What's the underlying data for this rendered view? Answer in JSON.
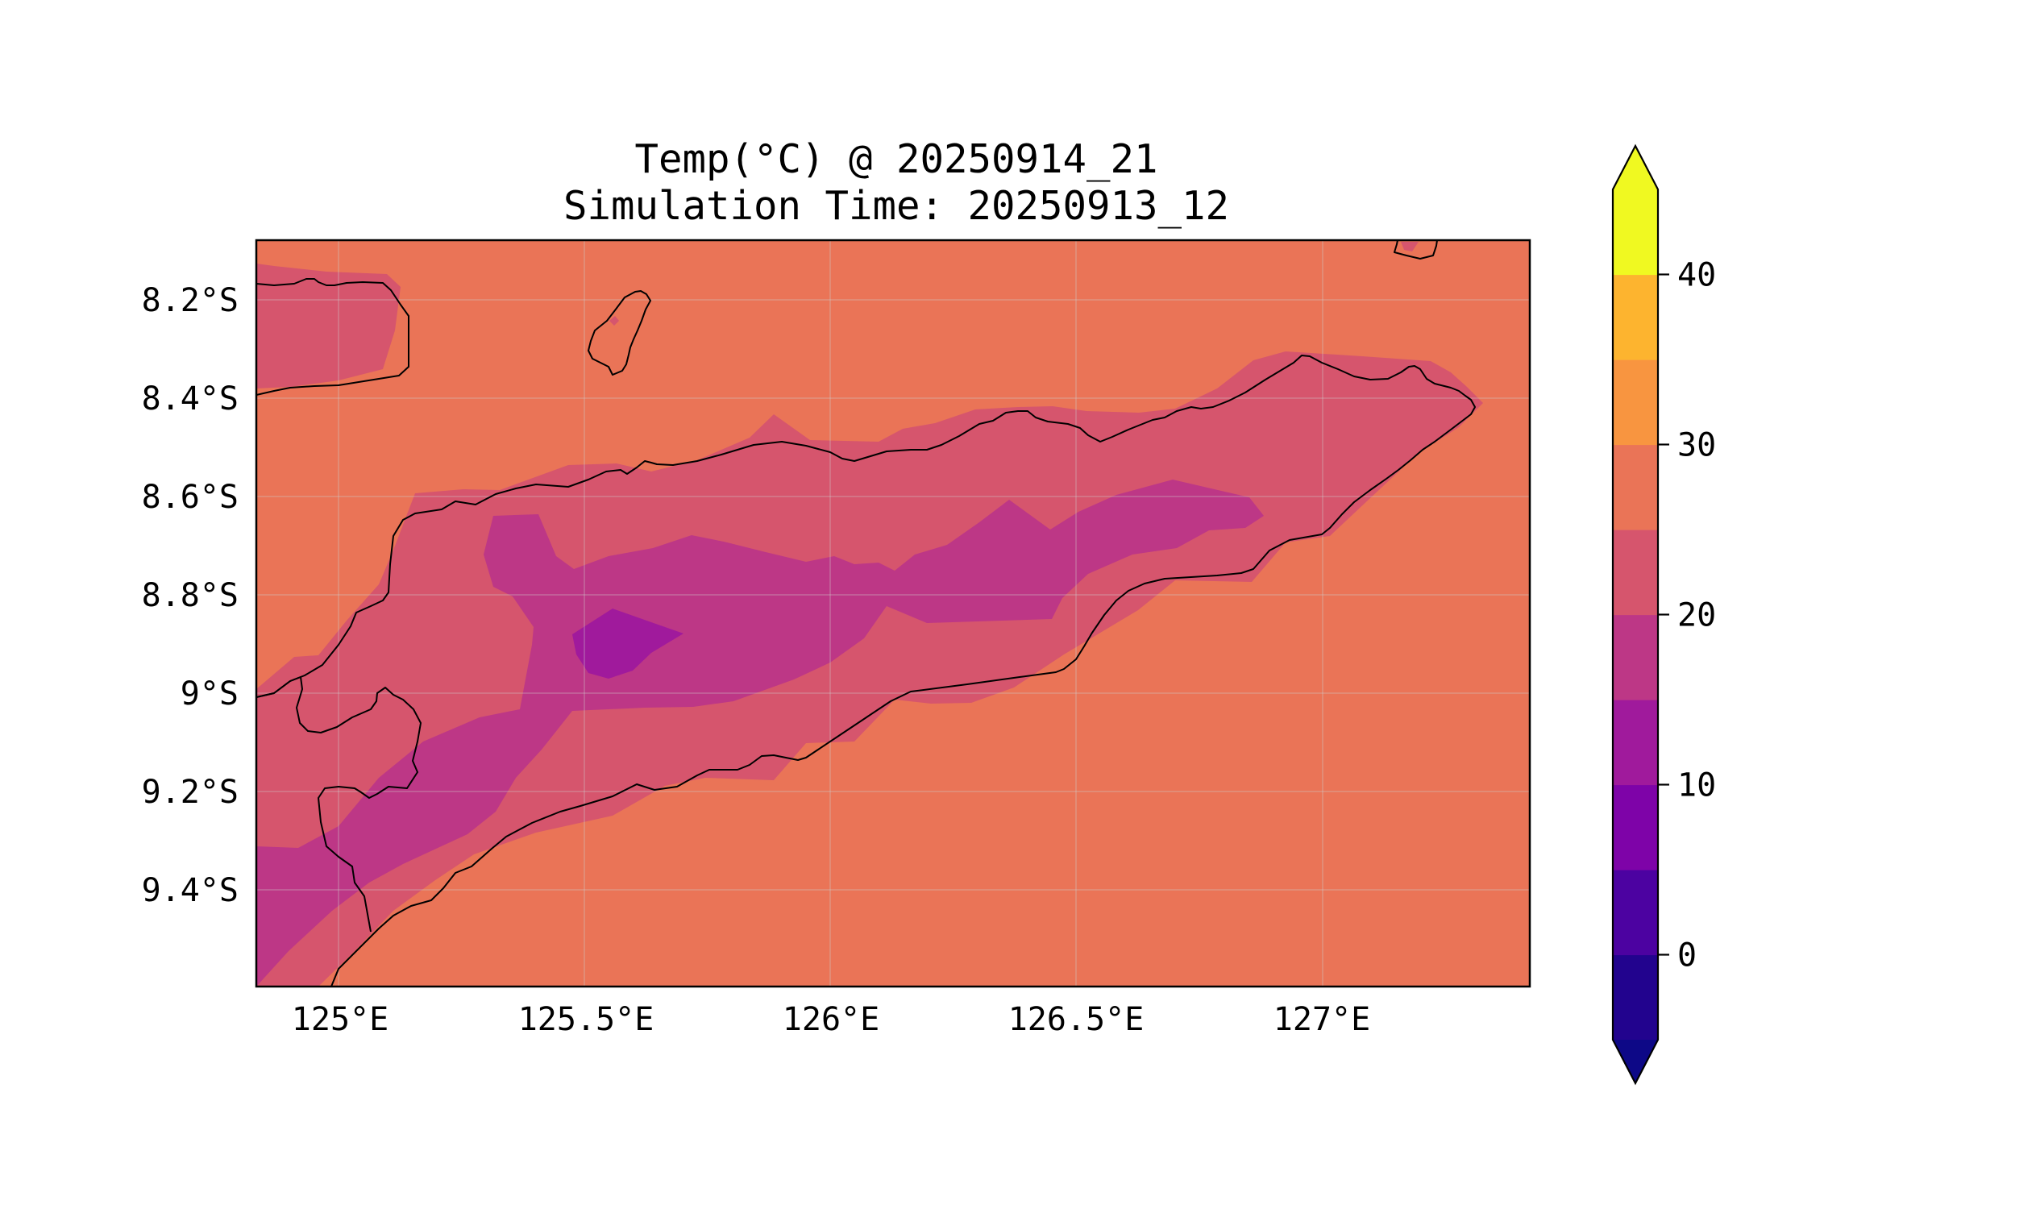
{
  "title": {
    "line1": "Temp(°C) @ 20250914_21",
    "line2": "Simulation Time: 20250913_12"
  },
  "chart_data": {
    "type": "heatmap",
    "subtype": "filled-contour map",
    "title": "Temp(°C) @ 20250914_21\nSimulation Time: 20250913_12",
    "xlabel": "",
    "ylabel": "",
    "xlim": [
      124.83,
      127.42
    ],
    "ylim": [
      -9.6,
      -8.08
    ],
    "x_ticks": [
      {
        "value": 125.0,
        "label": "125°E"
      },
      {
        "value": 125.5,
        "label": "125.5°E"
      },
      {
        "value": 126.0,
        "label": "126°E"
      },
      {
        "value": 126.5,
        "label": "126.5°E"
      },
      {
        "value": 127.0,
        "label": "127°E"
      }
    ],
    "y_ticks": [
      {
        "value": -8.2,
        "label": "8.2°S"
      },
      {
        "value": -8.4,
        "label": "8.4°S"
      },
      {
        "value": -8.6,
        "label": "8.6°S"
      },
      {
        "value": -8.8,
        "label": "8.8°S"
      },
      {
        "value": -9.0,
        "label": "9°S"
      },
      {
        "value": -9.2,
        "label": "9.2°S"
      },
      {
        "value": -9.4,
        "label": "9.4°S"
      }
    ],
    "grid": true,
    "colorbar": {
      "extend": "both",
      "levels": [
        -5,
        0,
        5,
        10,
        15,
        20,
        25,
        30,
        35,
        40,
        45
      ],
      "colors": [
        "#0d0887",
        "#22038e",
        "#4c02a1",
        "#7e03a8",
        "#a01a9c",
        "#bd3786",
        "#d6556d",
        "#ea7457",
        "#f89540",
        "#fdb42f",
        "#f0f921",
        "#f3e51e"
      ],
      "under_color": "#0d0887",
      "over_color": "#f0f921",
      "tick_labels": [
        {
          "value": 0,
          "label": "0"
        },
        {
          "value": 10,
          "label": "10"
        },
        {
          "value": 20,
          "label": "20"
        },
        {
          "value": 30,
          "label": "30"
        },
        {
          "value": 40,
          "label": "40"
        }
      ]
    },
    "regions": [
      {
        "level_range": [
          25,
          30
        ],
        "color": "#ea7457",
        "description": "background (sea and coastal lowlands)"
      },
      {
        "level_range": [
          20,
          25
        ],
        "color": "#d6556d"
      },
      {
        "level_range": [
          15,
          20
        ],
        "color": "#bd3786"
      },
      {
        "level_range": [
          10,
          15
        ],
        "color": "#a01a9c"
      }
    ],
    "features": [
      "coastline"
    ]
  }
}
